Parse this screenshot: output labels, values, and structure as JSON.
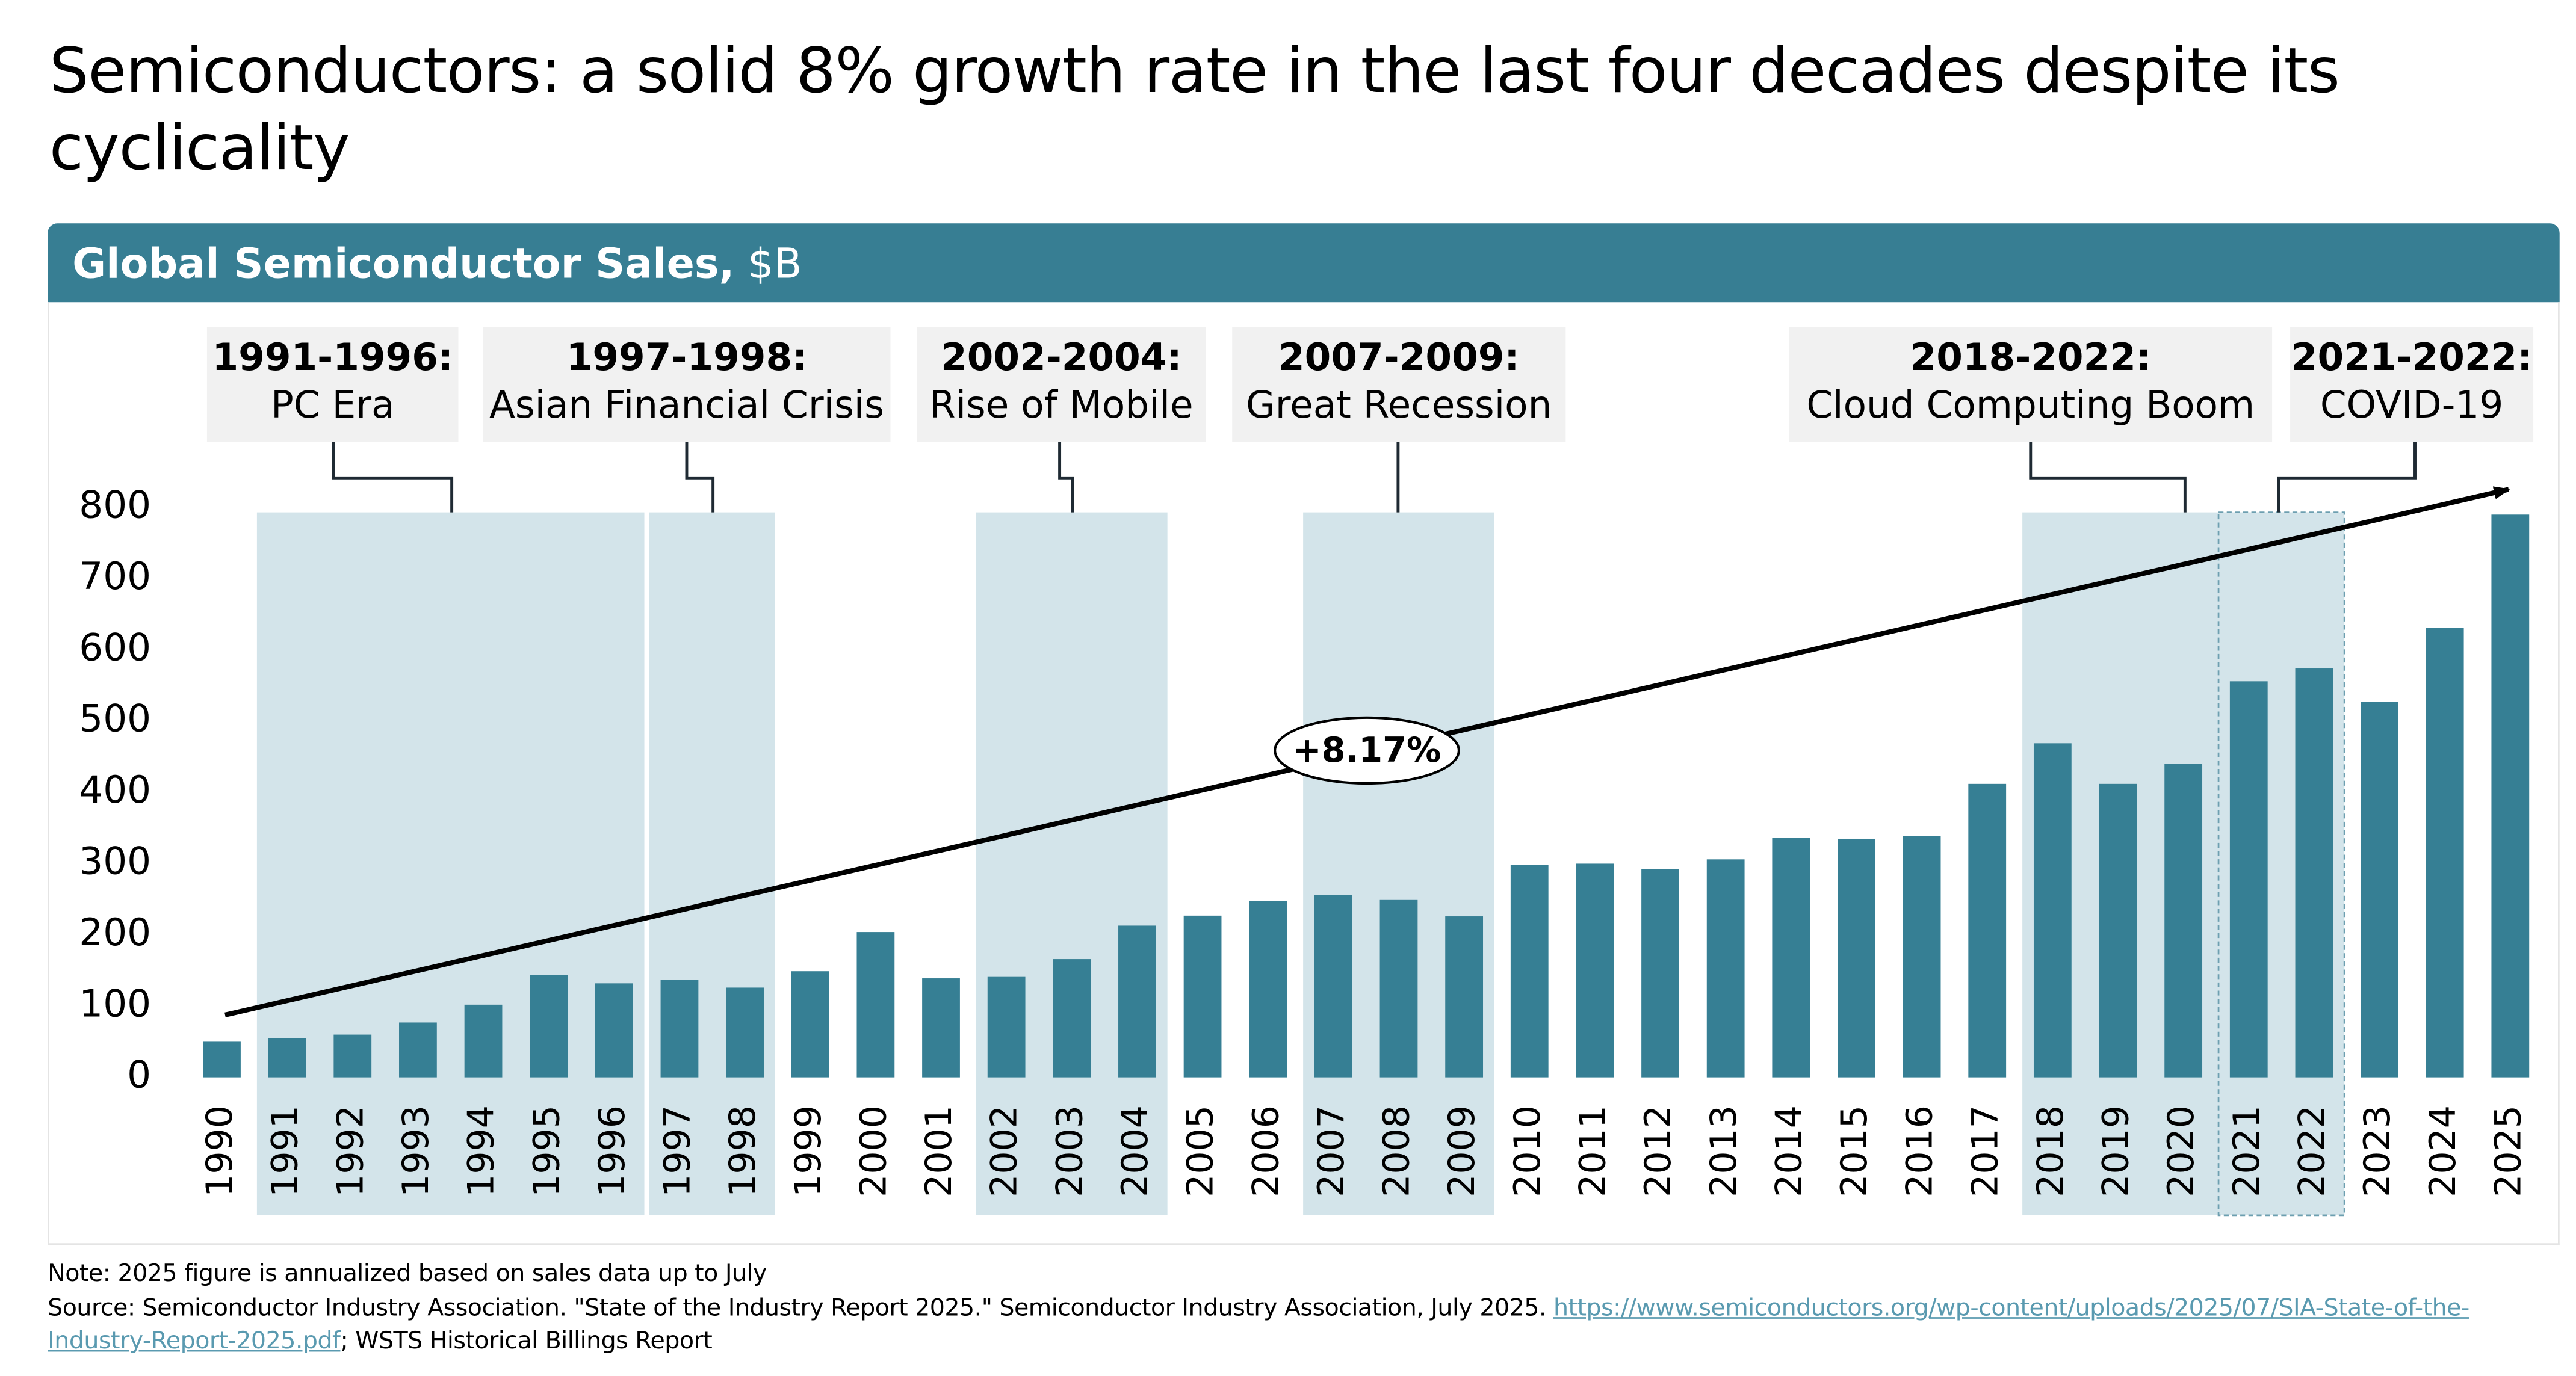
{
  "headline": "Semiconductors: a solid 8% growth rate in the last four decades despite its cyclicality",
  "chart_data": {
    "type": "bar",
    "title": "Global Semiconductor Sales,",
    "unit": "$B",
    "categories": [
      "1990",
      "1991",
      "1992",
      "1993",
      "1994",
      "1995",
      "1996",
      "1997",
      "1998",
      "1999",
      "2000",
      "2001",
      "2002",
      "2003",
      "2004",
      "2005",
      "2006",
      "2007",
      "2008",
      "2009",
      "2010",
      "2011",
      "2012",
      "2013",
      "2014",
      "2015",
      "2016",
      "2017",
      "2018",
      "2019",
      "2020",
      "2021",
      "2022",
      "2023",
      "2024",
      "2025"
    ],
    "values": [
      50,
      55,
      60,
      77,
      102,
      144,
      132,
      137,
      126,
      149,
      204,
      139,
      141,
      166,
      213,
      227,
      248,
      256,
      249,
      226,
      298,
      300,
      292,
      306,
      336,
      335,
      339,
      412,
      469,
      412,
      440,
      556,
      574,
      527,
      631,
      790
    ],
    "color": "#367f94",
    "ylim": [
      0,
      800
    ],
    "yticks": [
      0,
      100,
      200,
      300,
      400,
      500,
      600,
      700,
      800
    ],
    "periods": [
      {
        "range": "1991-1996:",
        "name": "PC Era"
      },
      {
        "range": "1997-1998:",
        "name": "Asian Financial Crisis"
      },
      {
        "range": "2002-2004:",
        "name": "Rise of Mobile"
      },
      {
        "range": "2007-2009:",
        "name": "Great Recession"
      },
      {
        "range": "2018-2022:",
        "name": "Cloud Computing Boom"
      },
      {
        "range": "2021-2022:",
        "name": "COVID-19"
      }
    ],
    "trend_label": "+8.17%"
  },
  "notes": {
    "note": "Note: 2025 figure is annualized based on sales data up to July",
    "source": "Source: Semiconductor Industry Association. \"State of the Industry Report 2025.\" Semiconductor Industry Association, July 2025. ",
    "link": "https://www.semiconductors.org/wp-content/uploads/2025/07/SIA-State-of-the-Industry-Report-2025.pdf",
    "source_end": "; WSTS Historical Billings Report"
  }
}
